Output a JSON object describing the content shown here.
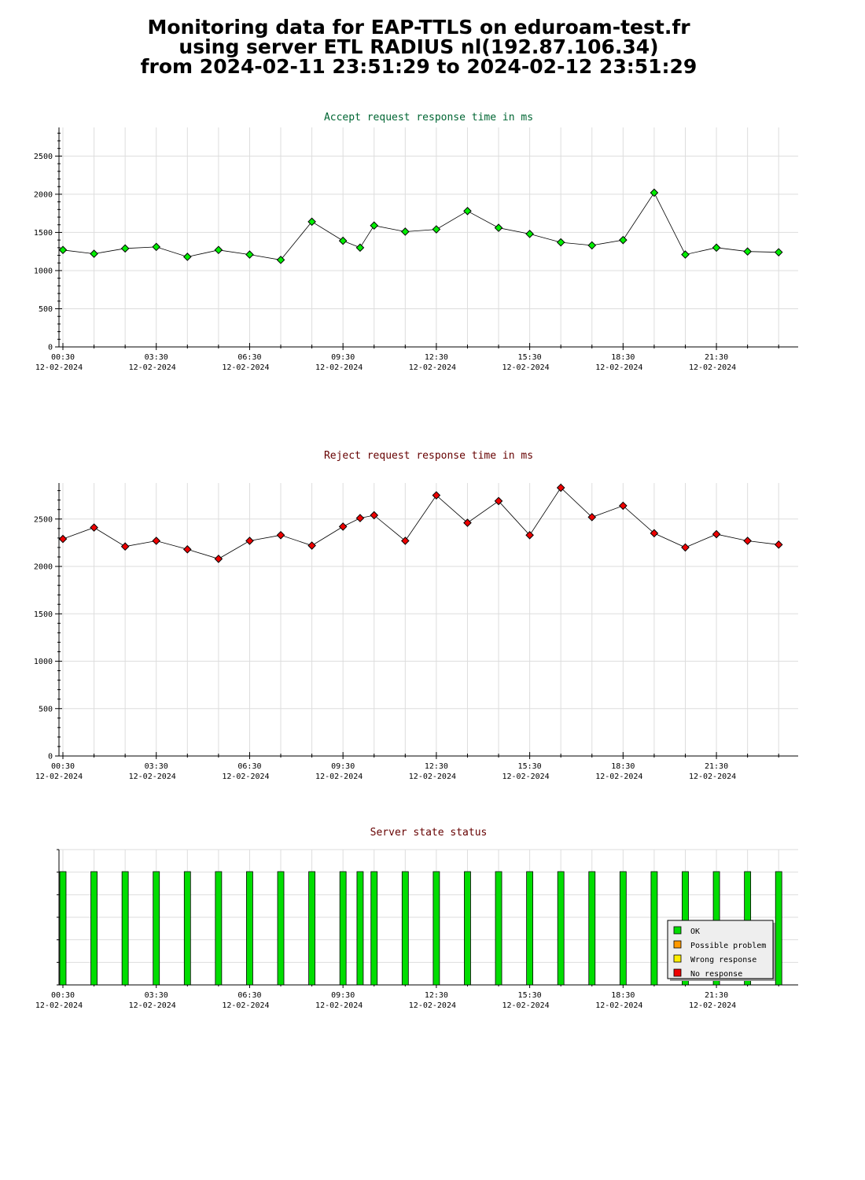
{
  "header": {
    "line1": "Monitoring data for EAP-TTLS on eduroam-test.fr",
    "line2": "using server ETL RADIUS nl(192.87.106.34)",
    "line3": "from 2024-02-11 23:51:29 to 2024-02-12 23:51:29"
  },
  "colors": {
    "accept_title": "#006633",
    "reject_title": "#660000",
    "status_title": "#660000",
    "accept_point": "#00ee00",
    "reject_point": "#ee0000",
    "ok": "#00dd00",
    "possible_problem": "#ff9900",
    "wrong_response": "#ffee00",
    "no_response": "#ee0000",
    "grid": "#dddddd"
  },
  "time_axis": {
    "tick_times": [
      "00:30",
      "03:30",
      "06:30",
      "09:30",
      "12:30",
      "15:30",
      "18:30",
      "21:30"
    ],
    "tick_date": "12-02-2024"
  },
  "chart_data": [
    {
      "id": "accept",
      "type": "line",
      "title": "Accept request response time in ms",
      "x_unit": "hours since 00:30 on 12-02-2024",
      "xlim": [
        0,
        23.5
      ],
      "ylim": [
        0,
        2875
      ],
      "yticks": [
        0,
        500,
        1000,
        1500,
        2000,
        2500
      ],
      "grid": true,
      "x": [
        0,
        1,
        2,
        3,
        4,
        5,
        6,
        7,
        8,
        9,
        9.55,
        10,
        11,
        12,
        13,
        14,
        15,
        16,
        17,
        18,
        19,
        20,
        21,
        22,
        23
      ],
      "values": [
        1270,
        1220,
        1290,
        1310,
        1180,
        1270,
        1210,
        1140,
        1640,
        1390,
        1300,
        1590,
        1510,
        1540,
        1780,
        1560,
        1480,
        1370,
        1330,
        1400,
        2020,
        1210,
        1300,
        1250,
        1240
      ]
    },
    {
      "id": "reject",
      "type": "line",
      "title": "Reject request response time in ms",
      "x_unit": "hours since 00:30 on 12-02-2024",
      "xlim": [
        0,
        23.5
      ],
      "ylim": [
        0,
        2880
      ],
      "yticks": [
        0,
        500,
        1000,
        1500,
        2000,
        2500
      ],
      "grid": true,
      "x": [
        0,
        1,
        2,
        3,
        4,
        5,
        6,
        7,
        8,
        9,
        9.55,
        10,
        11,
        12,
        13,
        14,
        15,
        16,
        17,
        18,
        19,
        20,
        21,
        22,
        23
      ],
      "values": [
        2290,
        2410,
        2210,
        2270,
        2180,
        2080,
        2270,
        2330,
        2220,
        2420,
        2510,
        2540,
        2270,
        2750,
        2460,
        2690,
        2330,
        2830,
        2520,
        2640,
        2350,
        2200,
        2340,
        2270,
        2230
      ]
    },
    {
      "id": "status",
      "type": "bar",
      "title": "Server state status",
      "x_unit": "hours since 00:30 on 12-02-2024",
      "xlim": [
        0,
        23.5
      ],
      "grid": true,
      "x": [
        0,
        1,
        2,
        3,
        4,
        5,
        6,
        7,
        8,
        9,
        9.55,
        10,
        11,
        12,
        13,
        14,
        15,
        16,
        17,
        18,
        19,
        20,
        21,
        22,
        23
      ],
      "states": [
        "OK",
        "OK",
        "OK",
        "OK",
        "OK",
        "OK",
        "OK",
        "OK",
        "OK",
        "OK",
        "OK",
        "OK",
        "OK",
        "OK",
        "OK",
        "OK",
        "OK",
        "OK",
        "OK",
        "OK",
        "OK",
        "OK",
        "OK",
        "OK",
        "OK"
      ],
      "legend": [
        "OK",
        "Possible problem",
        "Wrong response",
        "No response"
      ],
      "legend_placement": "bottom-right"
    }
  ]
}
